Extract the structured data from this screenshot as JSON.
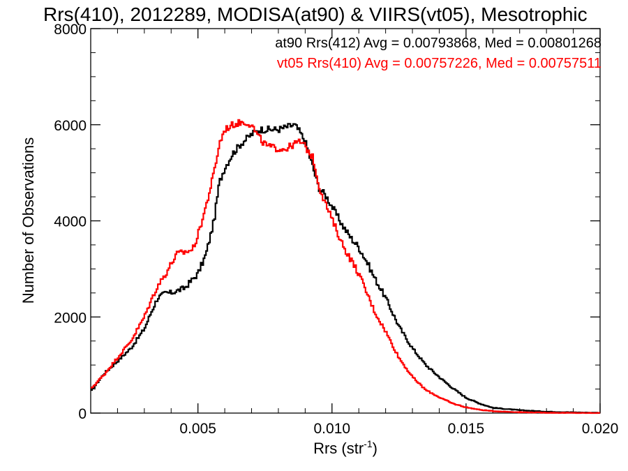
{
  "chart_data": {
    "type": "line",
    "title": "Rrs(410), 2012289, MODISA(at90) & VIIRS(vt05), Mesotrophic",
    "xlabel": "Rrs (str",
    "xlabel_sup": "-1",
    "xlabel_close": ")",
    "ylabel": "Number of Observations",
    "xlim": [
      0.001,
      0.02
    ],
    "ylim": [
      0,
      8000
    ],
    "xticks": [
      0.005,
      0.01,
      0.015,
      0.02
    ],
    "xtick_labels": [
      "0.005",
      "0.010",
      "0.015",
      "0.020"
    ],
    "yticks": [
      0,
      2000,
      4000,
      6000,
      8000
    ],
    "ytick_labels": [
      "0",
      "2000",
      "4000",
      "6000",
      "8000"
    ],
    "legend_position": "top-right",
    "series": [
      {
        "label": "at90 Rrs(412) Avg = 0.00793868, Med = 0.00801268",
        "color": "#000000",
        "x": [
          0.001,
          0.0015,
          0.002,
          0.0025,
          0.003,
          0.0033,
          0.0035,
          0.0038,
          0.004,
          0.0045,
          0.005,
          0.0053,
          0.0056,
          0.0058,
          0.006,
          0.0063,
          0.0066,
          0.007,
          0.0073,
          0.0076,
          0.008,
          0.0083,
          0.0086,
          0.0088,
          0.009,
          0.0093,
          0.0095,
          0.0098,
          0.0101,
          0.0104,
          0.0107,
          0.011,
          0.0113,
          0.0116,
          0.012,
          0.0125,
          0.013,
          0.0135,
          0.014,
          0.0145,
          0.015,
          0.0155,
          0.016,
          0.017,
          0.018,
          0.019,
          0.02
        ],
        "y": [
          450,
          820,
          1080,
          1350,
          1750,
          2150,
          2400,
          2500,
          2500,
          2600,
          2900,
          3300,
          4000,
          4800,
          5100,
          5400,
          5600,
          5800,
          5900,
          5900,
          5900,
          5950,
          6000,
          5850,
          5650,
          5100,
          4700,
          4500,
          4200,
          3900,
          3650,
          3450,
          3150,
          2800,
          2400,
          1800,
          1350,
          1000,
          750,
          520,
          320,
          200,
          110,
          60,
          30,
          15,
          5
        ]
      },
      {
        "label": "vt05 Rrs(410) Avg = 0.00757226, Med = 0.00757511",
        "color": "#ff0000",
        "x": [
          0.001,
          0.0015,
          0.002,
          0.0025,
          0.003,
          0.0033,
          0.0035,
          0.0038,
          0.004,
          0.0042,
          0.0045,
          0.0048,
          0.005,
          0.0053,
          0.0056,
          0.0058,
          0.006,
          0.0063,
          0.0066,
          0.0068,
          0.007,
          0.0072,
          0.0074,
          0.0076,
          0.008,
          0.0083,
          0.0086,
          0.0088,
          0.009,
          0.0093,
          0.0095,
          0.0098,
          0.0101,
          0.0104,
          0.0107,
          0.011,
          0.0113,
          0.0116,
          0.012,
          0.0125,
          0.013,
          0.0135,
          0.014,
          0.0145,
          0.015,
          0.0155,
          0.016,
          0.017,
          0.018,
          0.019,
          0.02
        ],
        "y": [
          500,
          800,
          1150,
          1500,
          2000,
          2400,
          2650,
          2900,
          3100,
          3300,
          3350,
          3400,
          3700,
          4300,
          5000,
          5600,
          5900,
          6000,
          6050,
          6050,
          6000,
          5800,
          5650,
          5550,
          5500,
          5500,
          5600,
          5650,
          5550,
          5300,
          4750,
          4300,
          3900,
          3500,
          3200,
          2900,
          2500,
          2100,
          1700,
          1150,
          750,
          480,
          330,
          200,
          120,
          70,
          40,
          18,
          8,
          3,
          1
        ]
      }
    ]
  }
}
